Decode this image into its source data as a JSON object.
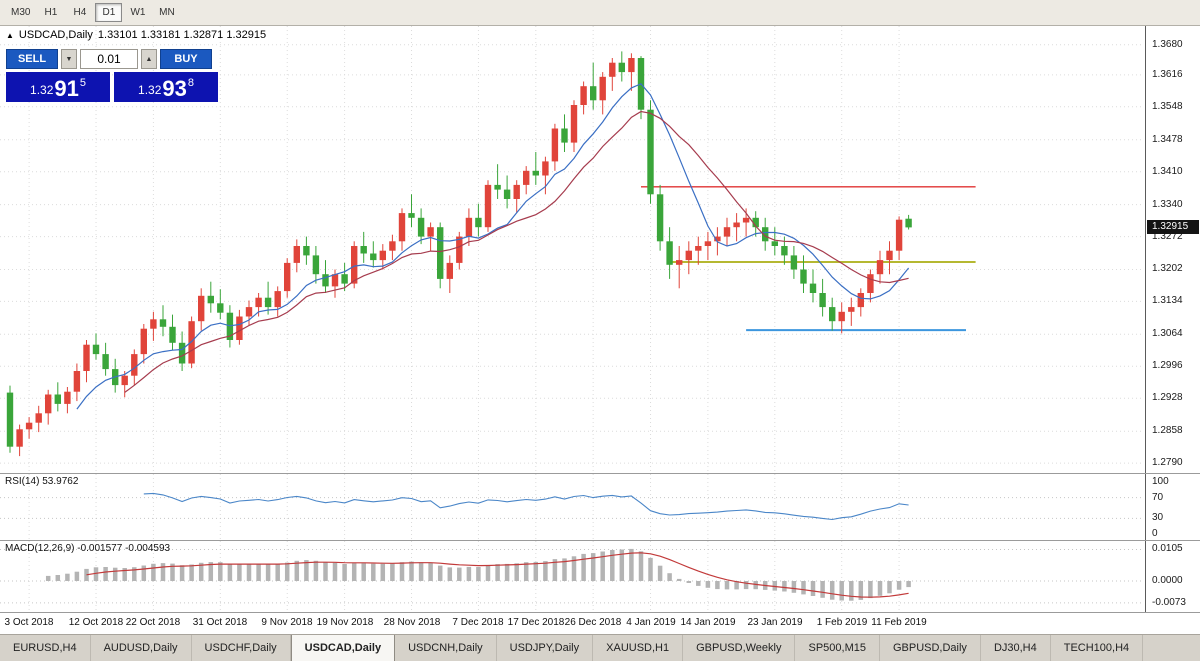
{
  "toolbar": {
    "timeframes": [
      {
        "label": "M30",
        "active": false
      },
      {
        "label": "H1",
        "active": false
      },
      {
        "label": "H4",
        "active": false
      },
      {
        "label": "D1",
        "active": true
      },
      {
        "label": "W1",
        "active": false
      },
      {
        "label": "MN",
        "active": false
      }
    ]
  },
  "chart": {
    "symbol_line": {
      "arrow": "▲",
      "symbol": "USDCAD,Daily",
      "ohlc": "1.33101 1.33181 1.32871 1.32915"
    }
  },
  "trade": {
    "sell_label": "SELL",
    "buy_label": "BUY",
    "volume": "0.01",
    "spin_down": "▼",
    "spin_up": "▲",
    "sell_price": {
      "prefix": "1.32",
      "big": "91",
      "sup": "5"
    },
    "buy_price": {
      "prefix": "1.32",
      "big": "93",
      "sup": "8"
    }
  },
  "chart_data": {
    "type": "candlestick",
    "symbol": "USDCAD",
    "timeframe": "Daily",
    "ohlc_display": {
      "open": "1.33101",
      "high": "1.33181",
      "low": "1.32871",
      "close": "1.32915"
    },
    "current_price": 1.32915,
    "current_price_label": "1.32915",
    "scale": {
      "top_price": 1.372,
      "bottom_price": 1.2769
    },
    "y_axis_labels": [
      "1.3680",
      "1.3616",
      "1.3548",
      "1.3478",
      "1.3410",
      "1.3340",
      "1.3272",
      "1.3202",
      "1.3134",
      "1.3064",
      "1.2996",
      "1.2928",
      "1.2858",
      "1.2790"
    ],
    "x_labels": [
      {
        "index": 2,
        "label": "3 Oct 2018"
      },
      {
        "index": 9,
        "label": "12 Oct 2018"
      },
      {
        "index": 15,
        "label": "22 Oct 2018"
      },
      {
        "index": 22,
        "label": "31 Oct 2018"
      },
      {
        "index": 29,
        "label": "9 Nov 2018"
      },
      {
        "index": 35,
        "label": "19 Nov 2018"
      },
      {
        "index": 42,
        "label": "28 Nov 2018"
      },
      {
        "index": 49,
        "label": "7 Dec 2018"
      },
      {
        "index": 55,
        "label": "17 Dec 2018"
      },
      {
        "index": 61,
        "label": "26 Dec 2018"
      },
      {
        "index": 67,
        "label": "4 Jan 2019"
      },
      {
        "index": 73,
        "label": "14 Jan 2019"
      },
      {
        "index": 80,
        "label": "23 Jan 2019"
      },
      {
        "index": 87,
        "label": "1 Feb 2019"
      },
      {
        "index": 93,
        "label": "11 Feb 2019"
      }
    ],
    "candles": [
      [
        1.294,
        1.2955,
        1.2812,
        1.2825
      ],
      [
        1.2825,
        1.2872,
        1.2805,
        1.2862
      ],
      [
        1.2862,
        1.2888,
        1.2842,
        1.2876
      ],
      [
        1.2876,
        1.2912,
        1.2856,
        1.2896
      ],
      [
        1.2896,
        1.2946,
        1.2872,
        1.2936
      ],
      [
        1.2936,
        1.2962,
        1.29,
        1.2916
      ],
      [
        1.2916,
        1.2952,
        1.2896,
        1.2942
      ],
      [
        1.2942,
        1.3002,
        1.2922,
        1.2986
      ],
      [
        1.2986,
        1.3052,
        1.2962,
        1.3042
      ],
      [
        1.3042,
        1.3066,
        1.301,
        1.3022
      ],
      [
        1.3022,
        1.3046,
        1.2976,
        1.299
      ],
      [
        1.299,
        1.3012,
        1.294,
        1.2956
      ],
      [
        1.2956,
        1.2986,
        1.293,
        1.2976
      ],
      [
        1.2976,
        1.3032,
        1.2956,
        1.3022
      ],
      [
        1.3022,
        1.3086,
        1.3002,
        1.3076
      ],
      [
        1.3076,
        1.3112,
        1.305,
        1.3096
      ],
      [
        1.3096,
        1.3126,
        1.306,
        1.308
      ],
      [
        1.308,
        1.3106,
        1.303,
        1.3046
      ],
      [
        1.3046,
        1.307,
        1.2986,
        1.3002
      ],
      [
        1.3002,
        1.3102,
        1.2992,
        1.3092
      ],
      [
        1.3092,
        1.3162,
        1.3072,
        1.3146
      ],
      [
        1.3146,
        1.3176,
        1.311,
        1.313
      ],
      [
        1.313,
        1.316,
        1.3096,
        1.311
      ],
      [
        1.311,
        1.3126,
        1.3036,
        1.3052
      ],
      [
        1.3052,
        1.3116,
        1.3042,
        1.3102
      ],
      [
        1.3102,
        1.3136,
        1.3082,
        1.3122
      ],
      [
        1.3122,
        1.3152,
        1.3102,
        1.3142
      ],
      [
        1.3142,
        1.3176,
        1.3106,
        1.3122
      ],
      [
        1.3122,
        1.3166,
        1.3102,
        1.3156
      ],
      [
        1.3156,
        1.3226,
        1.3142,
        1.3216
      ],
      [
        1.3216,
        1.3266,
        1.3196,
        1.3252
      ],
      [
        1.3252,
        1.3272,
        1.3212,
        1.3232
      ],
      [
        1.3232,
        1.3252,
        1.3172,
        1.3192
      ],
      [
        1.3192,
        1.3222,
        1.3152,
        1.3166
      ],
      [
        1.3166,
        1.3202,
        1.3142,
        1.3192
      ],
      [
        1.3192,
        1.3216,
        1.3156,
        1.3172
      ],
      [
        1.3172,
        1.3262,
        1.3162,
        1.3252
      ],
      [
        1.3252,
        1.3282,
        1.3216,
        1.3236
      ],
      [
        1.3236,
        1.3262,
        1.3206,
        1.3222
      ],
      [
        1.3222,
        1.3256,
        1.3202,
        1.3242
      ],
      [
        1.3242,
        1.3276,
        1.3222,
        1.3262
      ],
      [
        1.3262,
        1.3332,
        1.3242,
        1.3322
      ],
      [
        1.3322,
        1.3362,
        1.3292,
        1.3312
      ],
      [
        1.3312,
        1.3332,
        1.3256,
        1.3272
      ],
      [
        1.3272,
        1.3302,
        1.3242,
        1.3292
      ],
      [
        1.3292,
        1.3302,
        1.3162,
        1.3182
      ],
      [
        1.3182,
        1.3232,
        1.3152,
        1.3216
      ],
      [
        1.3216,
        1.3282,
        1.3202,
        1.3272
      ],
      [
        1.3272,
        1.3332,
        1.3252,
        1.3312
      ],
      [
        1.3312,
        1.3342,
        1.3272,
        1.3292
      ],
      [
        1.3292,
        1.3392,
        1.3282,
        1.3382
      ],
      [
        1.3382,
        1.3426,
        1.3352,
        1.3372
      ],
      [
        1.3372,
        1.3402,
        1.3332,
        1.3352
      ],
      [
        1.3352,
        1.3392,
        1.3322,
        1.3382
      ],
      [
        1.3382,
        1.3422,
        1.3362,
        1.3412
      ],
      [
        1.3412,
        1.3452,
        1.3382,
        1.3402
      ],
      [
        1.3402,
        1.3442,
        1.3362,
        1.3432
      ],
      [
        1.3432,
        1.3512,
        1.3412,
        1.3502
      ],
      [
        1.3502,
        1.3532,
        1.3452,
        1.3472
      ],
      [
        1.3472,
        1.3562,
        1.3452,
        1.3552
      ],
      [
        1.3552,
        1.3602,
        1.3532,
        1.3592
      ],
      [
        1.3592,
        1.3642,
        1.3542,
        1.3562
      ],
      [
        1.3562,
        1.3622,
        1.3532,
        1.3612
      ],
      [
        1.3612,
        1.3652,
        1.3582,
        1.3642
      ],
      [
        1.3642,
        1.3666,
        1.3602,
        1.3622
      ],
      [
        1.3622,
        1.3662,
        1.3582,
        1.3652
      ],
      [
        1.3652,
        1.3656,
        1.3522,
        1.3542
      ],
      [
        1.3542,
        1.3562,
        1.3342,
        1.3362
      ],
      [
        1.3362,
        1.3382,
        1.3242,
        1.3262
      ],
      [
        1.3262,
        1.3292,
        1.3182,
        1.3212
      ],
      [
        1.3212,
        1.3252,
        1.3162,
        1.3222
      ],
      [
        1.3222,
        1.3262,
        1.3192,
        1.3242
      ],
      [
        1.3242,
        1.3272,
        1.3212,
        1.3252
      ],
      [
        1.3252,
        1.3282,
        1.3222,
        1.3262
      ],
      [
        1.3262,
        1.3292,
        1.3232,
        1.3272
      ],
      [
        1.3272,
        1.3312,
        1.3252,
        1.3292
      ],
      [
        1.3292,
        1.3322,
        1.3262,
        1.3302
      ],
      [
        1.3302,
        1.3332,
        1.3272,
        1.3312
      ],
      [
        1.3312,
        1.3326,
        1.3272,
        1.3292
      ],
      [
        1.3292,
        1.3312,
        1.3242,
        1.3262
      ],
      [
        1.3262,
        1.3292,
        1.3232,
        1.3252
      ],
      [
        1.3252,
        1.3272,
        1.3212,
        1.3232
      ],
      [
        1.3232,
        1.3252,
        1.3182,
        1.3202
      ],
      [
        1.3202,
        1.3232,
        1.3152,
        1.3172
      ],
      [
        1.3172,
        1.3202,
        1.3132,
        1.3152
      ],
      [
        1.3152,
        1.3182,
        1.3102,
        1.3122
      ],
      [
        1.3122,
        1.3142,
        1.3072,
        1.3092
      ],
      [
        1.3092,
        1.3132,
        1.3066,
        1.3112
      ],
      [
        1.3112,
        1.3142,
        1.3082,
        1.3122
      ],
      [
        1.3122,
        1.3162,
        1.3102,
        1.3152
      ],
      [
        1.3152,
        1.3202,
        1.3132,
        1.3192
      ],
      [
        1.3192,
        1.3242,
        1.3172,
        1.3222
      ],
      [
        1.3222,
        1.3262,
        1.3192,
        1.3242
      ],
      [
        1.3242,
        1.3315,
        1.3222,
        1.3308
      ],
      [
        1.33101,
        1.33181,
        1.32871,
        1.32915
      ]
    ],
    "colors": {
      "up": "#e0443a",
      "down": "#3aa53a",
      "ma_fast": "#3a6fc4",
      "ma_slow": "#a63c4e"
    },
    "overlays": {
      "ma_fast_period": 8,
      "ma_slow_period": 13,
      "hlines": [
        {
          "price": 1.3378,
          "from_index": 66,
          "to_index": 101,
          "color": "#e03333",
          "width": 1.4
        },
        {
          "price": 1.3218,
          "from_index": 69,
          "to_index": 101,
          "color": "#b5b831",
          "width": 2
        },
        {
          "price": 1.3073,
          "from_index": 77,
          "to_index": 100,
          "color": "#3c96de",
          "width": 2
        }
      ]
    },
    "indicators": [
      {
        "name": "RSI",
        "label": "RSI(14) 53.9762",
        "period": 14,
        "levels": [
          "100",
          "70",
          "30",
          "0"
        ],
        "level_values": [
          100,
          70,
          30,
          0
        ],
        "color": "#4a86c8"
      },
      {
        "name": "MACD",
        "label": "MACD(12,26,9) -0.001577 -0.004593",
        "params": [
          12,
          26,
          9
        ],
        "axis_labels": [
          "0.0105",
          "0.0000",
          "-0.0073"
        ],
        "axis_values": [
          0.0105,
          0,
          -0.0073
        ],
        "histogram_color": "#b4b4b4",
        "signal_color": "#c23a3a"
      }
    ]
  },
  "tabs": [
    {
      "label": "EURUSD,H4",
      "active": false
    },
    {
      "label": "AUDUSD,Daily",
      "active": false
    },
    {
      "label": "USDCHF,Daily",
      "active": false
    },
    {
      "label": "USDCAD,Daily",
      "active": true
    },
    {
      "label": "USDCNH,Daily",
      "active": false
    },
    {
      "label": "USDJPY,Daily",
      "active": false
    },
    {
      "label": "XAUUSD,H1",
      "active": false
    },
    {
      "label": "GBPUSD,Weekly",
      "active": false
    },
    {
      "label": "SP500,M15",
      "active": false
    },
    {
      "label": "GBPUSD,Daily",
      "active": false
    },
    {
      "label": "DJ30,H4",
      "active": false
    },
    {
      "label": "TECH100,H4",
      "active": false
    }
  ]
}
